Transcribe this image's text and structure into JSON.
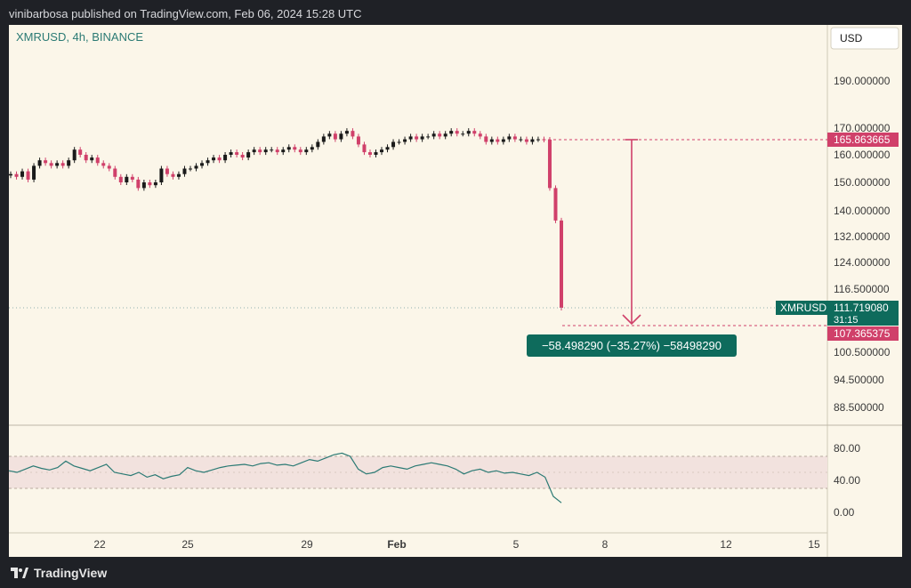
{
  "header": {
    "published": "vinibarbosa published on TradingView.com, Feb 06, 2024 15:28 UTC"
  },
  "footer": {
    "brand": "TradingView"
  },
  "chart_data": {
    "type": "candlestick",
    "symbol_label": "XMRUSD, 4h, BINANCE",
    "currency": "USD",
    "colors": {
      "up": "#1a1a1a",
      "down": "#d0406a",
      "accent": "#0e6b5c",
      "rsi_line": "#2b7a74",
      "background": "#fbf6e9"
    },
    "price_ticks": [
      "190.000000",
      "170.000000",
      "160.000000",
      "150.000000",
      "140.000000",
      "132.000000",
      "124.000000",
      "116.500000",
      "100.500000",
      "94.500000",
      "88.500000"
    ],
    "x_ticks": [
      "22",
      "25",
      "29",
      "Feb",
      "5",
      "8",
      "12",
      "15"
    ],
    "rsi_ticks": [
      "80.00",
      "40.00",
      "0.00"
    ],
    "rsi_band": [
      30,
      70
    ],
    "close_series": [
      153,
      152,
      154,
      151,
      156,
      158,
      157,
      156,
      157,
      156,
      158,
      162,
      160,
      158,
      159,
      157,
      156,
      155,
      152,
      150,
      152,
      151,
      148,
      150,
      149,
      150,
      155,
      153,
      152,
      153,
      155,
      155,
      156,
      157,
      158,
      159,
      158,
      160,
      161,
      160,
      159,
      161,
      162,
      161,
      162,
      162,
      161,
      162,
      163,
      162,
      161,
      162,
      163,
      165,
      167,
      168,
      166,
      168,
      169,
      167,
      164,
      161,
      160,
      161,
      162,
      163,
      165,
      165,
      166,
      167,
      166,
      167,
      167,
      168,
      167,
      168,
      169,
      168,
      168,
      169,
      168,
      167,
      165,
      166,
      165,
      166,
      167,
      166,
      166,
      165,
      166,
      166,
      165.86,
      148,
      137,
      111.72
    ],
    "rsi_series": [
      52,
      50,
      54,
      58,
      55,
      53,
      56,
      64,
      58,
      55,
      52,
      56,
      60,
      50,
      48,
      46,
      50,
      44,
      47,
      42,
      45,
      47,
      56,
      52,
      50,
      53,
      56,
      58,
      59,
      60,
      58,
      61,
      62,
      59,
      60,
      58,
      62,
      66,
      64,
      68,
      72,
      74,
      70,
      54,
      48,
      50,
      56,
      58,
      56,
      54,
      58,
      60,
      62,
      60,
      58,
      54,
      48,
      52,
      54,
      50,
      52,
      49,
      50,
      48,
      46,
      50,
      44,
      20,
      12
    ],
    "labels": {
      "current_symbol": "XMRUSD",
      "current_price": "111.719080",
      "countdown": "31:15",
      "start_level": "165.863665",
      "end_level": "107.365375",
      "measure": "−58.498290 (−35.27%) −58498290"
    }
  }
}
